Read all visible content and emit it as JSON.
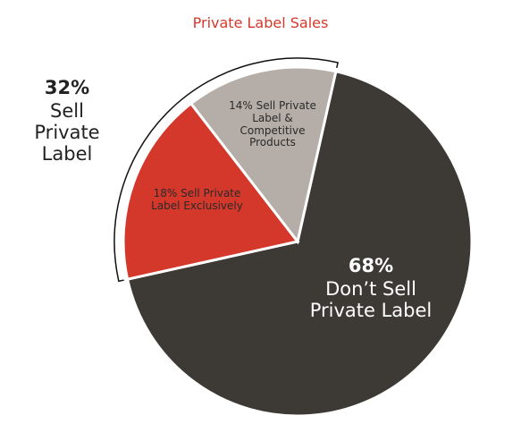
{
  "chart_data": {
    "type": "pie",
    "title": "Private Label Sales",
    "categories": [
      "Don’t Sell Private Label",
      "Sell Private Label Exclusively",
      "Sell Private Label & Competitive Products"
    ],
    "values": [
      68,
      18,
      14
    ],
    "value_labels": [
      "68%",
      "18%",
      "14%"
    ],
    "colors": [
      "#3d3935",
      "#d3382b",
      "#b5ada7"
    ],
    "group": {
      "value": 32,
      "value_label": "32%",
      "name": "Sell Private Label"
    }
  }
}
